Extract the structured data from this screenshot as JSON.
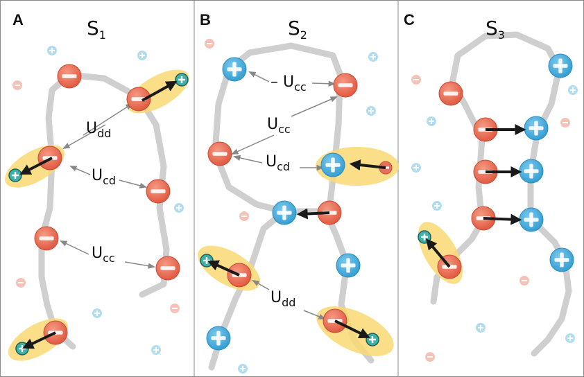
{
  "panels": [
    {
      "letter": "A",
      "title": {
        "main": "S",
        "sub": "1"
      },
      "labels": [
        {
          "main": "U",
          "sub": "dd"
        },
        {
          "main": "U",
          "sub": "cd"
        },
        {
          "main": "U",
          "sub": "cc"
        }
      ]
    },
    {
      "letter": "B",
      "title": {
        "main": "S",
        "sub": "2"
      },
      "labels": [
        {
          "main": "– U",
          "sub": "cc"
        },
        {
          "main": "U",
          "sub": "cc"
        },
        {
          "main": "U",
          "sub": "cd"
        },
        {
          "main": "U",
          "sub": "dd"
        }
      ]
    },
    {
      "letter": "C",
      "title": {
        "main": "S",
        "sub": "3"
      }
    }
  ]
}
